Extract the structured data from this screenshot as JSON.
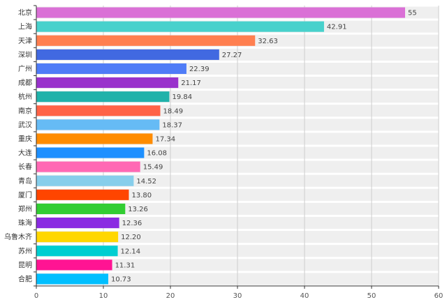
{
  "chart_data": {
    "type": "bar",
    "orientation": "horizontal",
    "title": "",
    "xlabel": "",
    "ylabel": "",
    "xlim": [
      0,
      60
    ],
    "xticks": [
      0,
      10,
      20,
      30,
      40,
      50,
      60
    ],
    "grid": true,
    "categories": [
      "北京",
      "上海",
      "天津",
      "深圳",
      "广州",
      "成都",
      "杭州",
      "南京",
      "武汉",
      "重庆",
      "大连",
      "长春",
      "青岛",
      "厦门",
      "郑州",
      "珠海",
      "乌鲁木齐",
      "苏州",
      "昆明",
      "合肥"
    ],
    "values": [
      55,
      42.91,
      32.63,
      27.27,
      22.39,
      21.17,
      19.84,
      18.49,
      18.37,
      17.34,
      16.08,
      15.49,
      14.52,
      13.8,
      13.26,
      12.36,
      12.2,
      12.14,
      11.31,
      10.73
    ],
    "value_labels": [
      "55",
      "42.91",
      "32.63",
      "27.27",
      "22.39",
      "21.17",
      "19.84",
      "18.49",
      "18.37",
      "17.34",
      "16.08",
      "15.49",
      "14.52",
      "13.80",
      "13.26",
      "12.36",
      "12.20",
      "12.14",
      "11.31",
      "10.73"
    ],
    "colors": [
      "#da70d6",
      "#48d1cc",
      "#ff7f50",
      "#4169e1",
      "#4f7cf7",
      "#9932cc",
      "#20b2aa",
      "#ff6347",
      "#66bbf5",
      "#ff8c00",
      "#1e90ff",
      "#ff69b4",
      "#87ceeb",
      "#ff4500",
      "#32cd32",
      "#8a2be2",
      "#ffd700",
      "#00ced1",
      "#ff1493",
      "#00bfff"
    ],
    "background_band_color": "#efefef"
  }
}
